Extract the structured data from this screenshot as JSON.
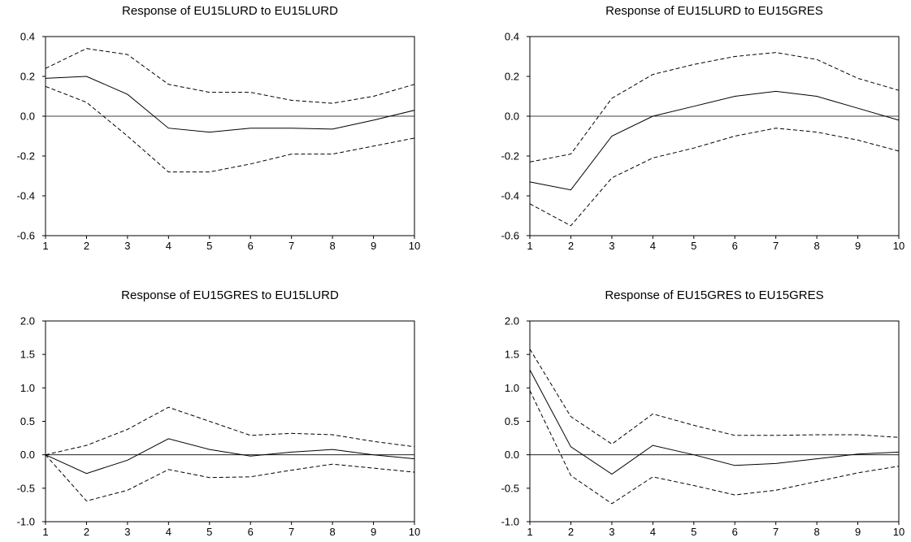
{
  "chart_data": [
    {
      "type": "line",
      "title": "Response of EU15LURD to EU15LURD",
      "x": [
        1,
        2,
        3,
        4,
        5,
        6,
        7,
        8,
        9,
        10
      ],
      "ylim": [
        -0.6,
        0.4
      ],
      "yticks": [
        "-0.6",
        "-0.4",
        "-0.2",
        "0.0",
        "0.2",
        "0.4"
      ],
      "ytick_values": [
        -0.6,
        -0.4,
        -0.2,
        0.0,
        0.2,
        0.4
      ],
      "xticks": [
        "1",
        "2",
        "3",
        "4",
        "5",
        "6",
        "7",
        "8",
        "9",
        "10"
      ],
      "zero_line": true,
      "series": [
        {
          "style": "solid",
          "values": [
            0.19,
            0.2,
            0.11,
            -0.06,
            -0.08,
            -0.06,
            -0.06,
            -0.065,
            -0.02,
            0.03
          ]
        },
        {
          "style": "dashed",
          "values": [
            0.24,
            0.34,
            0.31,
            0.16,
            0.12,
            0.12,
            0.08,
            0.065,
            0.1,
            0.16
          ]
        },
        {
          "style": "dashed",
          "values": [
            0.15,
            0.07,
            -0.1,
            -0.28,
            -0.28,
            -0.24,
            -0.19,
            -0.19,
            -0.15,
            -0.11
          ]
        }
      ]
    },
    {
      "type": "line",
      "title": "Response of EU15LURD to EU15GRES",
      "x": [
        1,
        2,
        3,
        4,
        5,
        6,
        7,
        8,
        9,
        10
      ],
      "ylim": [
        -0.6,
        0.4
      ],
      "yticks": [
        "-0.6",
        "-0.4",
        "-0.2",
        "0.0",
        "0.2",
        "0.4"
      ],
      "ytick_values": [
        -0.6,
        -0.4,
        -0.2,
        0.0,
        0.2,
        0.4
      ],
      "xticks": [
        "1",
        "2",
        "3",
        "4",
        "5",
        "6",
        "7",
        "8",
        "9",
        "10"
      ],
      "zero_line": true,
      "series": [
        {
          "style": "solid",
          "values": [
            -0.33,
            -0.37,
            -0.1,
            0.0,
            0.05,
            0.1,
            0.125,
            0.1,
            0.04,
            -0.02
          ]
        },
        {
          "style": "dashed",
          "values": [
            -0.23,
            -0.19,
            0.09,
            0.21,
            0.26,
            0.3,
            0.32,
            0.285,
            0.19,
            0.13
          ]
        },
        {
          "style": "dashed",
          "values": [
            -0.44,
            -0.55,
            -0.31,
            -0.21,
            -0.16,
            -0.1,
            -0.06,
            -0.08,
            -0.12,
            -0.175
          ]
        }
      ]
    },
    {
      "type": "line",
      "title": "Response of EU15GRES to EU15LURD",
      "x": [
        1,
        2,
        3,
        4,
        5,
        6,
        7,
        8,
        9,
        10
      ],
      "ylim": [
        -1.0,
        2.0
      ],
      "yticks": [
        "-1.0",
        "-0.5",
        "0.0",
        "0.5",
        "1.0",
        "1.5",
        "2.0"
      ],
      "ytick_values": [
        -1.0,
        -0.5,
        0.0,
        0.5,
        1.0,
        1.5,
        2.0
      ],
      "xticks": [
        "1",
        "2",
        "3",
        "4",
        "5",
        "6",
        "7",
        "8",
        "9",
        "10"
      ],
      "zero_line": true,
      "series": [
        {
          "style": "solid",
          "values": [
            0.0,
            -0.28,
            -0.08,
            0.24,
            0.08,
            -0.02,
            0.04,
            0.08,
            0.0,
            -0.06
          ]
        },
        {
          "style": "dashed",
          "values": [
            0.0,
            0.14,
            0.38,
            0.71,
            0.5,
            0.29,
            0.32,
            0.3,
            0.2,
            0.12
          ]
        },
        {
          "style": "dashed",
          "values": [
            0.0,
            -0.69,
            -0.53,
            -0.22,
            -0.34,
            -0.33,
            -0.23,
            -0.14,
            -0.2,
            -0.26
          ]
        }
      ]
    },
    {
      "type": "line",
      "title": "Response of EU15GRES to EU15GRES",
      "x": [
        1,
        2,
        3,
        4,
        5,
        6,
        7,
        8,
        9,
        10
      ],
      "ylim": [
        -1.0,
        2.0
      ],
      "yticks": [
        "-1.0",
        "-0.5",
        "0.0",
        "0.5",
        "1.0",
        "1.5",
        "2.0"
      ],
      "ytick_values": [
        -1.0,
        -0.5,
        0.0,
        0.5,
        1.0,
        1.5,
        2.0
      ],
      "xticks": [
        "1",
        "2",
        "3",
        "4",
        "5",
        "6",
        "7",
        "8",
        "9",
        "10"
      ],
      "zero_line": true,
      "series": [
        {
          "style": "solid",
          "values": [
            1.27,
            0.12,
            -0.29,
            0.14,
            0.0,
            -0.16,
            -0.13,
            -0.06,
            0.01,
            0.04
          ]
        },
        {
          "style": "dashed",
          "values": [
            1.58,
            0.57,
            0.16,
            0.61,
            0.44,
            0.29,
            0.29,
            0.3,
            0.3,
            0.26
          ]
        },
        {
          "style": "dashed",
          "values": [
            0.96,
            -0.31,
            -0.73,
            -0.33,
            -0.46,
            -0.6,
            -0.53,
            -0.4,
            -0.27,
            -0.17
          ]
        }
      ]
    }
  ]
}
